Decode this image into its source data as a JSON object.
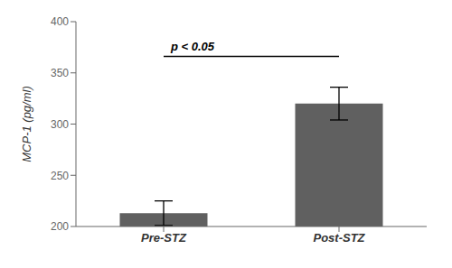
{
  "chart_data": {
    "type": "bar",
    "categories": [
      "Pre-STZ",
      "Post-STZ"
    ],
    "values": [
      213,
      320
    ],
    "errors": [
      12,
      16
    ],
    "color": "#606060",
    "ylabel": "MCP-1  (pg/ml)",
    "ylim": [
      200,
      400
    ],
    "yticks": [
      200,
      250,
      300,
      350,
      400
    ],
    "grid": false,
    "annotations": [
      {
        "text": "p < 0.05",
        "y": 369,
        "line_y": 366
      }
    ]
  }
}
